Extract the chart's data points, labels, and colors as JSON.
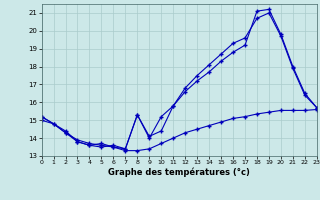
{
  "xlabel": "Graphe des températures (°c)",
  "background_color": "#cce8e8",
  "grid_color": "#aacccc",
  "line_color": "#0000bb",
  "xlim": [
    0,
    23
  ],
  "ylim": [
    13,
    21.5
  ],
  "yticks": [
    13,
    14,
    15,
    16,
    17,
    18,
    19,
    20,
    21
  ],
  "xticks": [
    0,
    1,
    2,
    3,
    4,
    5,
    6,
    7,
    8,
    9,
    10,
    11,
    12,
    13,
    14,
    15,
    16,
    17,
    18,
    19,
    20,
    21,
    22,
    23
  ],
  "series1_x": [
    0,
    1,
    2,
    3,
    4,
    5,
    6,
    7,
    8,
    9,
    10,
    11,
    12,
    13,
    14,
    15,
    16,
    17,
    18,
    19,
    20,
    21,
    22,
    23
  ],
  "series1_y": [
    15.2,
    14.8,
    14.3,
    13.8,
    13.6,
    13.7,
    13.5,
    13.4,
    15.3,
    14.0,
    15.2,
    15.8,
    16.6,
    17.2,
    17.7,
    18.3,
    18.8,
    19.2,
    21.1,
    21.2,
    19.8,
    18.0,
    16.5,
    15.7
  ],
  "series2_x": [
    0,
    2,
    3,
    4,
    5,
    6,
    7,
    8,
    9,
    10,
    11,
    12,
    13,
    14,
    15,
    16,
    17,
    18,
    19,
    20,
    21,
    22,
    23
  ],
  "series2_y": [
    15.2,
    14.4,
    13.8,
    13.6,
    13.5,
    13.6,
    13.4,
    15.3,
    14.1,
    14.4,
    15.8,
    16.8,
    17.5,
    18.1,
    18.7,
    19.3,
    19.6,
    20.7,
    21.0,
    19.7,
    17.9,
    16.4,
    15.7
  ],
  "series3_x": [
    0,
    1,
    2,
    3,
    4,
    5,
    6,
    7,
    8,
    9,
    10,
    11,
    12,
    13,
    14,
    15,
    16,
    17,
    18,
    19,
    20,
    21,
    22,
    23
  ],
  "series3_y": [
    15.0,
    14.8,
    14.3,
    13.9,
    13.7,
    13.6,
    13.5,
    13.3,
    13.3,
    13.4,
    13.7,
    14.0,
    14.3,
    14.5,
    14.7,
    14.9,
    15.1,
    15.2,
    15.35,
    15.45,
    15.55,
    15.55,
    15.55,
    15.6
  ]
}
